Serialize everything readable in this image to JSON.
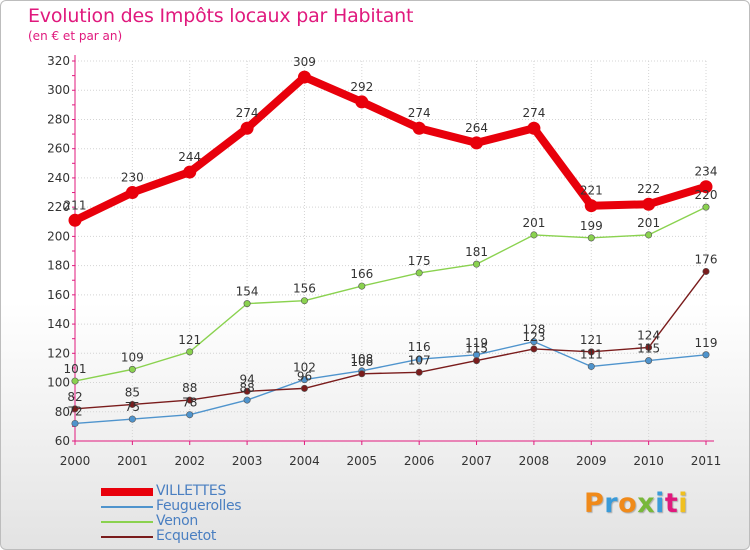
{
  "title": "Evolution des Impôts locaux par Habitant",
  "subtitle": "(en € et par an)",
  "logo": {
    "chars": [
      "P",
      "r",
      "o",
      "x",
      "i",
      "t",
      "i"
    ],
    "colors": [
      "#f08a1a",
      "#3a9bd9",
      "#f08a1a",
      "#78b83a",
      "#3a9bd9",
      "#e0197d",
      "#f0c020"
    ]
  },
  "chart_data": {
    "type": "line",
    "title": "Evolution des Impôts locaux par Habitant",
    "subtitle": "(en € et par an)",
    "x": [
      "2000",
      "2001",
      "2002",
      "2003",
      "2004",
      "2005",
      "2006",
      "2007",
      "2008",
      "2009",
      "2010",
      "2011"
    ],
    "ylim": [
      60,
      320
    ],
    "yticks": [
      60,
      80,
      100,
      120,
      140,
      160,
      180,
      200,
      220,
      240,
      260,
      280,
      300,
      320
    ],
    "grid": true,
    "legend_position": "bottom-left",
    "series": [
      {
        "name": "VILLETTES",
        "color": "#e8000b",
        "values": [
          211,
          230,
          244,
          274,
          309,
          292,
          274,
          264,
          274,
          221,
          222,
          234
        ],
        "labels": [
          "211",
          "230",
          "244",
          "274",
          "309",
          "292",
          "274",
          "264",
          "274",
          "221",
          "222",
          "234"
        ]
      },
      {
        "name": "Feuguerolles",
        "color": "#4f94cd",
        "values": [
          72,
          75,
          78,
          88,
          102,
          108,
          116,
          119,
          128,
          111,
          115,
          119
        ],
        "labels": [
          "72",
          "75",
          "78",
          "88",
          "102",
          "108",
          "116",
          "119",
          "128",
          "111",
          "115",
          "119"
        ]
      },
      {
        "name": "Venon",
        "color": "#8ad24f",
        "values": [
          101,
          109,
          121,
          154,
          156,
          166,
          175,
          181,
          201,
          199,
          201,
          220
        ],
        "labels": [
          "101",
          "109",
          "121",
          "154",
          "156",
          "166",
          "175",
          "181",
          "201",
          "199",
          "201",
          "220"
        ]
      },
      {
        "name": "Ecquetot",
        "color": "#7a1c1c",
        "values": [
          82,
          85,
          88,
          94,
          96,
          106,
          107,
          115,
          123,
          121,
          124,
          176
        ],
        "labels": [
          "82",
          "85",
          "88",
          "94",
          "96",
          "106",
          "107",
          "115",
          "123",
          "121",
          "124",
          "176"
        ]
      }
    ]
  }
}
